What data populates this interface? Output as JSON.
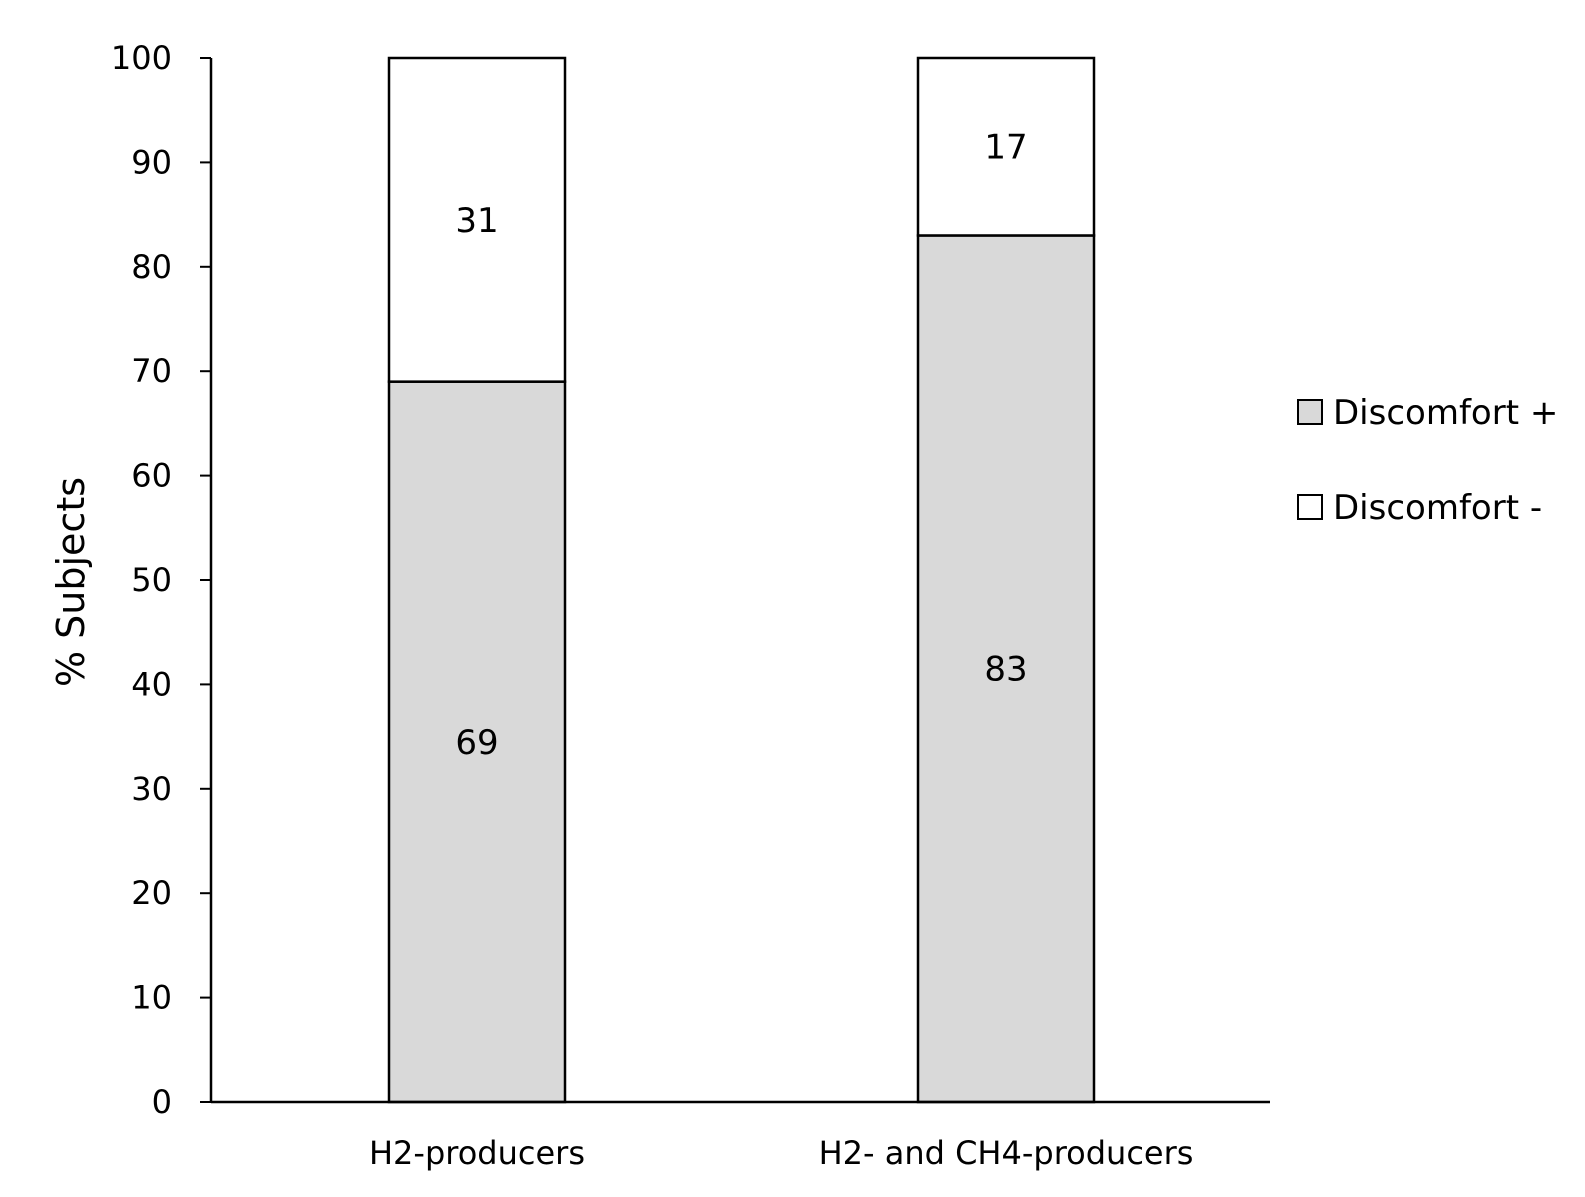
{
  "chart_data": {
    "type": "bar",
    "stacked": true,
    "categories": [
      "H2-producers",
      "H2- and CH4-producers"
    ],
    "series": [
      {
        "name": "Discomfort +",
        "values": [
          69,
          83
        ],
        "color": "#d9d9d9"
      },
      {
        "name": "Discomfort -",
        "values": [
          31,
          17
        ],
        "color": "#ffffff"
      }
    ],
    "data_labels": [
      [
        "69",
        "83"
      ],
      [
        "31",
        "17"
      ]
    ],
    "title": "",
    "xlabel": "",
    "ylabel": "% Subjects",
    "ylim": [
      0,
      100
    ],
    "yticks": [
      0,
      10,
      20,
      30,
      40,
      50,
      60,
      70,
      80,
      90,
      100
    ],
    "grid": false,
    "legend_position": "right",
    "legend_order": [
      0,
      1
    ]
  }
}
